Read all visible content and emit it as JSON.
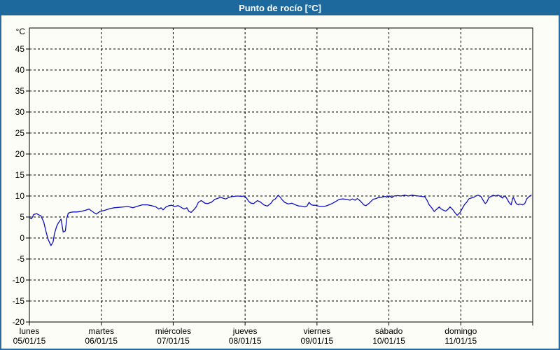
{
  "window": {
    "title": "Punto de rocío [°C]",
    "title_bar_color": "#1D689C",
    "frame_border_color": "#2B6BA0",
    "background_color": "#FCFDF6"
  },
  "chart_data": {
    "type": "line",
    "title": "Punto de rocío [°C]",
    "y_unit_label": "°C",
    "grid": "dashed",
    "grid_color": "#000000",
    "legend": "none",
    "line_color": "#0F0FC4",
    "y_axis": {
      "min": -20,
      "max": 50,
      "tick_step": 5,
      "tick_labels": [
        45,
        40,
        35,
        30,
        25,
        20,
        15,
        10,
        5,
        0,
        -5,
        -10,
        -15,
        -20
      ]
    },
    "x_axis": {
      "x_unit": "days from start (lunes 05/01/15 00:00)",
      "range_days": 7,
      "days": [
        {
          "name": "lunes",
          "date": "05/01/15"
        },
        {
          "name": "martes",
          "date": "06/01/15"
        },
        {
          "name": "miércoles",
          "date": "07/01/15"
        },
        {
          "name": "jueves",
          "date": "08/01/15"
        },
        {
          "name": "viernes",
          "date": "09/01/15"
        },
        {
          "name": "sábado",
          "date": "10/01/15"
        },
        {
          "name": "domingo",
          "date": "11/01/15"
        }
      ]
    },
    "series": [
      {
        "name": "Punto de rocío",
        "unit": "°C",
        "points": [
          [
            0.0,
            4.8
          ],
          [
            0.03,
            4.6
          ],
          [
            0.06,
            5.6
          ],
          [
            0.1,
            5.8
          ],
          [
            0.13,
            5.5
          ],
          [
            0.16,
            5.3
          ],
          [
            0.2,
            3.8
          ],
          [
            0.23,
            1.6
          ],
          [
            0.26,
            -0.3
          ],
          [
            0.3,
            -1.8
          ],
          [
            0.33,
            -0.9
          ],
          [
            0.35,
            1.1
          ],
          [
            0.38,
            2.8
          ],
          [
            0.4,
            3.5
          ],
          [
            0.44,
            4.5
          ],
          [
            0.47,
            1.4
          ],
          [
            0.5,
            1.7
          ],
          [
            0.52,
            4.7
          ],
          [
            0.54,
            5.9
          ],
          [
            0.57,
            6.1
          ],
          [
            0.61,
            6.2
          ],
          [
            0.66,
            6.2
          ],
          [
            0.71,
            6.3
          ],
          [
            0.78,
            6.6
          ],
          [
            0.83,
            6.9
          ],
          [
            0.86,
            6.5
          ],
          [
            0.91,
            5.9
          ],
          [
            0.93,
            5.7
          ],
          [
            0.98,
            6.3
          ],
          [
            1.05,
            6.6
          ],
          [
            1.12,
            7.0
          ],
          [
            1.18,
            7.2
          ],
          [
            1.25,
            7.3
          ],
          [
            1.31,
            7.4
          ],
          [
            1.37,
            7.5
          ],
          [
            1.44,
            7.2
          ],
          [
            1.51,
            7.6
          ],
          [
            1.57,
            7.9
          ],
          [
            1.64,
            7.9
          ],
          [
            1.7,
            7.7
          ],
          [
            1.76,
            7.4
          ],
          [
            1.8,
            6.9
          ],
          [
            1.83,
            7.2
          ],
          [
            1.86,
            6.7
          ],
          [
            1.9,
            7.4
          ],
          [
            1.94,
            7.7
          ],
          [
            1.98,
            7.8
          ],
          [
            2.02,
            7.5
          ],
          [
            2.07,
            7.7
          ],
          [
            2.12,
            7.2
          ],
          [
            2.15,
            6.9
          ],
          [
            2.19,
            7.2
          ],
          [
            2.22,
            6.3
          ],
          [
            2.25,
            6.1
          ],
          [
            2.29,
            6.8
          ],
          [
            2.32,
            7.4
          ],
          [
            2.35,
            8.5
          ],
          [
            2.39,
            8.9
          ],
          [
            2.41,
            8.7
          ],
          [
            2.44,
            8.3
          ],
          [
            2.48,
            8.2
          ],
          [
            2.53,
            8.5
          ],
          [
            2.58,
            9.2
          ],
          [
            2.63,
            9.5
          ],
          [
            2.66,
            9.7
          ],
          [
            2.69,
            9.5
          ],
          [
            2.73,
            9.3
          ],
          [
            2.78,
            9.7
          ],
          [
            2.83,
            9.9
          ],
          [
            2.9,
            10.0
          ],
          [
            2.95,
            9.9
          ],
          [
            2.98,
            10.0
          ],
          [
            3.02,
            9.5
          ],
          [
            3.05,
            8.7
          ],
          [
            3.08,
            8.3
          ],
          [
            3.12,
            8.2
          ],
          [
            3.14,
            8.5
          ],
          [
            3.17,
            8.9
          ],
          [
            3.21,
            8.6
          ],
          [
            3.26,
            7.9
          ],
          [
            3.31,
            7.6
          ],
          [
            3.36,
            8.3
          ],
          [
            3.39,
            9.0
          ],
          [
            3.42,
            9.3
          ],
          [
            3.46,
            10.2
          ],
          [
            3.49,
            9.7
          ],
          [
            3.51,
            9.2
          ],
          [
            3.55,
            8.5
          ],
          [
            3.6,
            8.1
          ],
          [
            3.65,
            8.3
          ],
          [
            3.7,
            7.9
          ],
          [
            3.75,
            7.6
          ],
          [
            3.78,
            7.6
          ],
          [
            3.83,
            7.4
          ],
          [
            3.86,
            7.6
          ],
          [
            3.89,
            8.5
          ],
          [
            3.92,
            7.9
          ],
          [
            3.95,
            7.8
          ],
          [
            3.98,
            7.8
          ],
          [
            4.02,
            7.6
          ],
          [
            4.07,
            7.5
          ],
          [
            4.12,
            7.6
          ],
          [
            4.17,
            7.9
          ],
          [
            4.22,
            8.3
          ],
          [
            4.26,
            8.7
          ],
          [
            4.31,
            9.2
          ],
          [
            4.36,
            9.3
          ],
          [
            4.41,
            9.2
          ],
          [
            4.46,
            9.0
          ],
          [
            4.49,
            9.3
          ],
          [
            4.53,
            9.0
          ],
          [
            4.56,
            9.4
          ],
          [
            4.59,
            9.0
          ],
          [
            4.62,
            8.5
          ],
          [
            4.65,
            7.9
          ],
          [
            4.68,
            7.7
          ],
          [
            4.72,
            8.2
          ],
          [
            4.75,
            8.7
          ],
          [
            4.78,
            9.2
          ],
          [
            4.82,
            9.4
          ],
          [
            4.85,
            9.6
          ],
          [
            4.9,
            9.7
          ],
          [
            4.95,
            9.9
          ],
          [
            4.97,
            9.7
          ],
          [
            5.01,
            10.0
          ],
          [
            5.04,
            9.6
          ],
          [
            5.07,
            10.0
          ],
          [
            5.12,
            10.1
          ],
          [
            5.17,
            10.0
          ],
          [
            5.22,
            10.2
          ],
          [
            5.27,
            10.0
          ],
          [
            5.32,
            10.2
          ],
          [
            5.36,
            10.1
          ],
          [
            5.41,
            10.0
          ],
          [
            5.46,
            9.9
          ],
          [
            5.5,
            9.8
          ],
          [
            5.53,
            9.0
          ],
          [
            5.56,
            7.9
          ],
          [
            5.6,
            7.1
          ],
          [
            5.63,
            6.3
          ],
          [
            5.66,
            6.8
          ],
          [
            5.7,
            7.4
          ],
          [
            5.72,
            7.0
          ],
          [
            5.75,
            6.7
          ],
          [
            5.79,
            6.4
          ],
          [
            5.82,
            6.8
          ],
          [
            5.85,
            7.4
          ],
          [
            5.89,
            6.7
          ],
          [
            5.92,
            6.0
          ],
          [
            5.95,
            5.4
          ],
          [
            5.99,
            6.1
          ],
          [
            6.02,
            7.0
          ],
          [
            6.05,
            7.9
          ],
          [
            6.09,
            8.7
          ],
          [
            6.11,
            9.3
          ],
          [
            6.14,
            9.5
          ],
          [
            6.18,
            9.7
          ],
          [
            6.21,
            10.0
          ],
          [
            6.24,
            10.2
          ],
          [
            6.28,
            9.9
          ],
          [
            6.31,
            9.0
          ],
          [
            6.34,
            8.2
          ],
          [
            6.36,
            8.5
          ],
          [
            6.39,
            9.6
          ],
          [
            6.43,
            10.0
          ],
          [
            6.45,
            10.2
          ],
          [
            6.48,
            10.0
          ],
          [
            6.52,
            10.2
          ],
          [
            6.55,
            9.9
          ],
          [
            6.58,
            9.5
          ],
          [
            6.6,
            10.0
          ],
          [
            6.63,
            9.7
          ],
          [
            6.67,
            8.5
          ],
          [
            6.7,
            7.9
          ],
          [
            6.72,
            9.3
          ],
          [
            6.73,
            9.7
          ],
          [
            6.75,
            9.0
          ],
          [
            6.77,
            8.2
          ],
          [
            6.8,
            7.9
          ],
          [
            6.82,
            8.1
          ],
          [
            6.86,
            7.9
          ],
          [
            6.89,
            8.2
          ],
          [
            6.92,
            9.4
          ],
          [
            6.96,
            10.0
          ],
          [
            6.98,
            10.2
          ]
        ]
      }
    ]
  }
}
